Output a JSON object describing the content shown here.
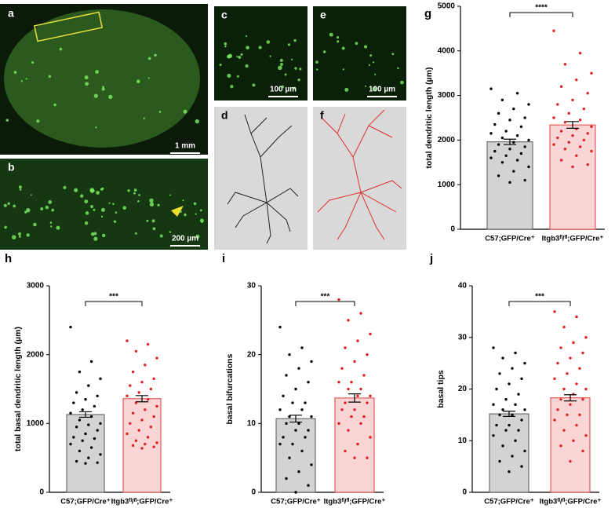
{
  "images": [
    {
      "letter": "a",
      "scale": "1 mm"
    },
    {
      "letter": "b",
      "scale": "200 µm"
    },
    {
      "letter": "c",
      "scale": "100 µm"
    },
    {
      "letter": "d"
    },
    {
      "letter": "e",
      "scale": "100 µm"
    },
    {
      "letter": "f"
    }
  ],
  "chart_data": [
    {
      "type": "bar",
      "label": "g",
      "ylabel": "total dendritic length (µm)",
      "annotation": "****",
      "categories": [
        "C57;GFP/Cre⁺",
        "Itgb3ᶠˡ/ᶠˡ;GFP/Cre⁺"
      ],
      "colors": [
        "#d3d3d3",
        "#f9d5d5"
      ],
      "edge_colors": [
        "#555555",
        "#e04040"
      ],
      "point_colors": [
        "#000000",
        "#e02020"
      ],
      "values": [
        1960,
        2340
      ],
      "errors": [
        60,
        75
      ],
      "points": [
        [
          3150,
          3050,
          2900,
          2800,
          2700,
          2600,
          2500,
          2450,
          2350,
          2300,
          2200,
          2150,
          2100,
          2050,
          2000,
          1950,
          1900,
          1850,
          1800,
          1750,
          1700,
          1650,
          1600,
          1550,
          1500,
          1400,
          1300,
          1200,
          1100,
          1050
        ],
        [
          4450,
          3950,
          3700,
          3500,
          3350,
          3200,
          3050,
          2900,
          2800,
          2700,
          2600,
          2500,
          2450,
          2400,
          2300,
          2250,
          2200,
          2150,
          2100,
          2050,
          2000,
          1950,
          1900,
          1850,
          1800,
          1750,
          1650,
          1550,
          1450,
          1400
        ]
      ],
      "ylim": [
        0,
        5000
      ],
      "yticks": [
        0,
        1000,
        2000,
        3000,
        4000,
        5000
      ]
    },
    {
      "type": "bar",
      "label": "h",
      "ylabel": "total basal dendritic length (µm)",
      "annotation": "***",
      "categories": [
        "C57;GFP/Cre⁺",
        "Itgb3ᶠˡ/ᶠˡ;GFP/Cre⁺"
      ],
      "colors": [
        "#d3d3d3",
        "#f9d5d5"
      ],
      "edge_colors": [
        "#555555",
        "#e04040"
      ],
      "point_colors": [
        "#000000",
        "#e02020"
      ],
      "values": [
        1130,
        1360
      ],
      "errors": [
        40,
        45
      ],
      "points": [
        [
          2400,
          1900,
          1750,
          1650,
          1550,
          1450,
          1400,
          1350,
          1300,
          1250,
          1200,
          1150,
          1100,
          1050,
          1000,
          980,
          950,
          900,
          850,
          800,
          780,
          750,
          700,
          650,
          600,
          550,
          500,
          450,
          430,
          420
        ],
        [
          2200,
          2150,
          2050,
          1950,
          1850,
          1750,
          1650,
          1600,
          1550,
          1500,
          1450,
          1400,
          1350,
          1300,
          1250,
          1200,
          1150,
          1100,
          1050,
          1000,
          950,
          900,
          850,
          800,
          750,
          720,
          700,
          680,
          660,
          640
        ]
      ],
      "ylim": [
        0,
        3000
      ],
      "yticks": [
        0,
        1000,
        2000,
        3000
      ]
    },
    {
      "type": "bar",
      "label": "i",
      "ylabel": "basal bifurcations",
      "annotation": "***",
      "categories": [
        "C57;GFP/Cre⁺",
        "Itgb3ᶠˡ/ᶠˡ;GFP/Cre⁺"
      ],
      "colors": [
        "#d3d3d3",
        "#f9d5d5"
      ],
      "edge_colors": [
        "#555555",
        "#e04040"
      ],
      "point_colors": [
        "#000000",
        "#e02020"
      ],
      "values": [
        10.7,
        13.7
      ],
      "errors": [
        0.5,
        0.6
      ],
      "points": [
        [
          24,
          21,
          20,
          19,
          18,
          17,
          16,
          15,
          14,
          13,
          13,
          12,
          12,
          11,
          11,
          10,
          10,
          9,
          9,
          8,
          8,
          7,
          7,
          6,
          5,
          4,
          3,
          2,
          1,
          0
        ],
        [
          28,
          26,
          25,
          23,
          22,
          21,
          20,
          19,
          18,
          17,
          16,
          16,
          15,
          15,
          14,
          14,
          13,
          13,
          12,
          12,
          11,
          11,
          10,
          10,
          9,
          8,
          7,
          6,
          5,
          5
        ]
      ],
      "ylim": [
        0,
        30
      ],
      "yticks": [
        0,
        10,
        20,
        30
      ]
    },
    {
      "type": "bar",
      "label": "j",
      "ylabel": "basal tips",
      "annotation": "***",
      "categories": [
        "C57;GFP/Cre⁺",
        "Itgb3ᶠˡ/ᶠˡ;GFP/Cre⁺"
      ],
      "colors": [
        "#d3d3d3",
        "#f9d5d5"
      ],
      "edge_colors": [
        "#555555",
        "#e04040"
      ],
      "point_colors": [
        "#000000",
        "#e02020"
      ],
      "values": [
        15.2,
        18.3
      ],
      "errors": [
        0.5,
        0.6
      ],
      "points": [
        [
          28,
          27,
          26,
          25,
          24,
          23,
          22,
          21,
          20,
          19,
          18,
          17,
          17,
          16,
          16,
          15,
          15,
          14,
          13,
          13,
          12,
          12,
          11,
          10,
          9,
          8,
          7,
          6,
          5,
          4
        ],
        [
          35,
          34,
          32,
          30,
          29,
          28,
          27,
          26,
          25,
          24,
          23,
          22,
          21,
          20,
          20,
          19,
          18,
          18,
          17,
          16,
          15,
          15,
          14,
          13,
          12,
          11,
          10,
          9,
          8,
          6
        ]
      ],
      "ylim": [
        0,
        40
      ],
      "yticks": [
        0,
        10,
        20,
        30,
        40
      ]
    }
  ]
}
